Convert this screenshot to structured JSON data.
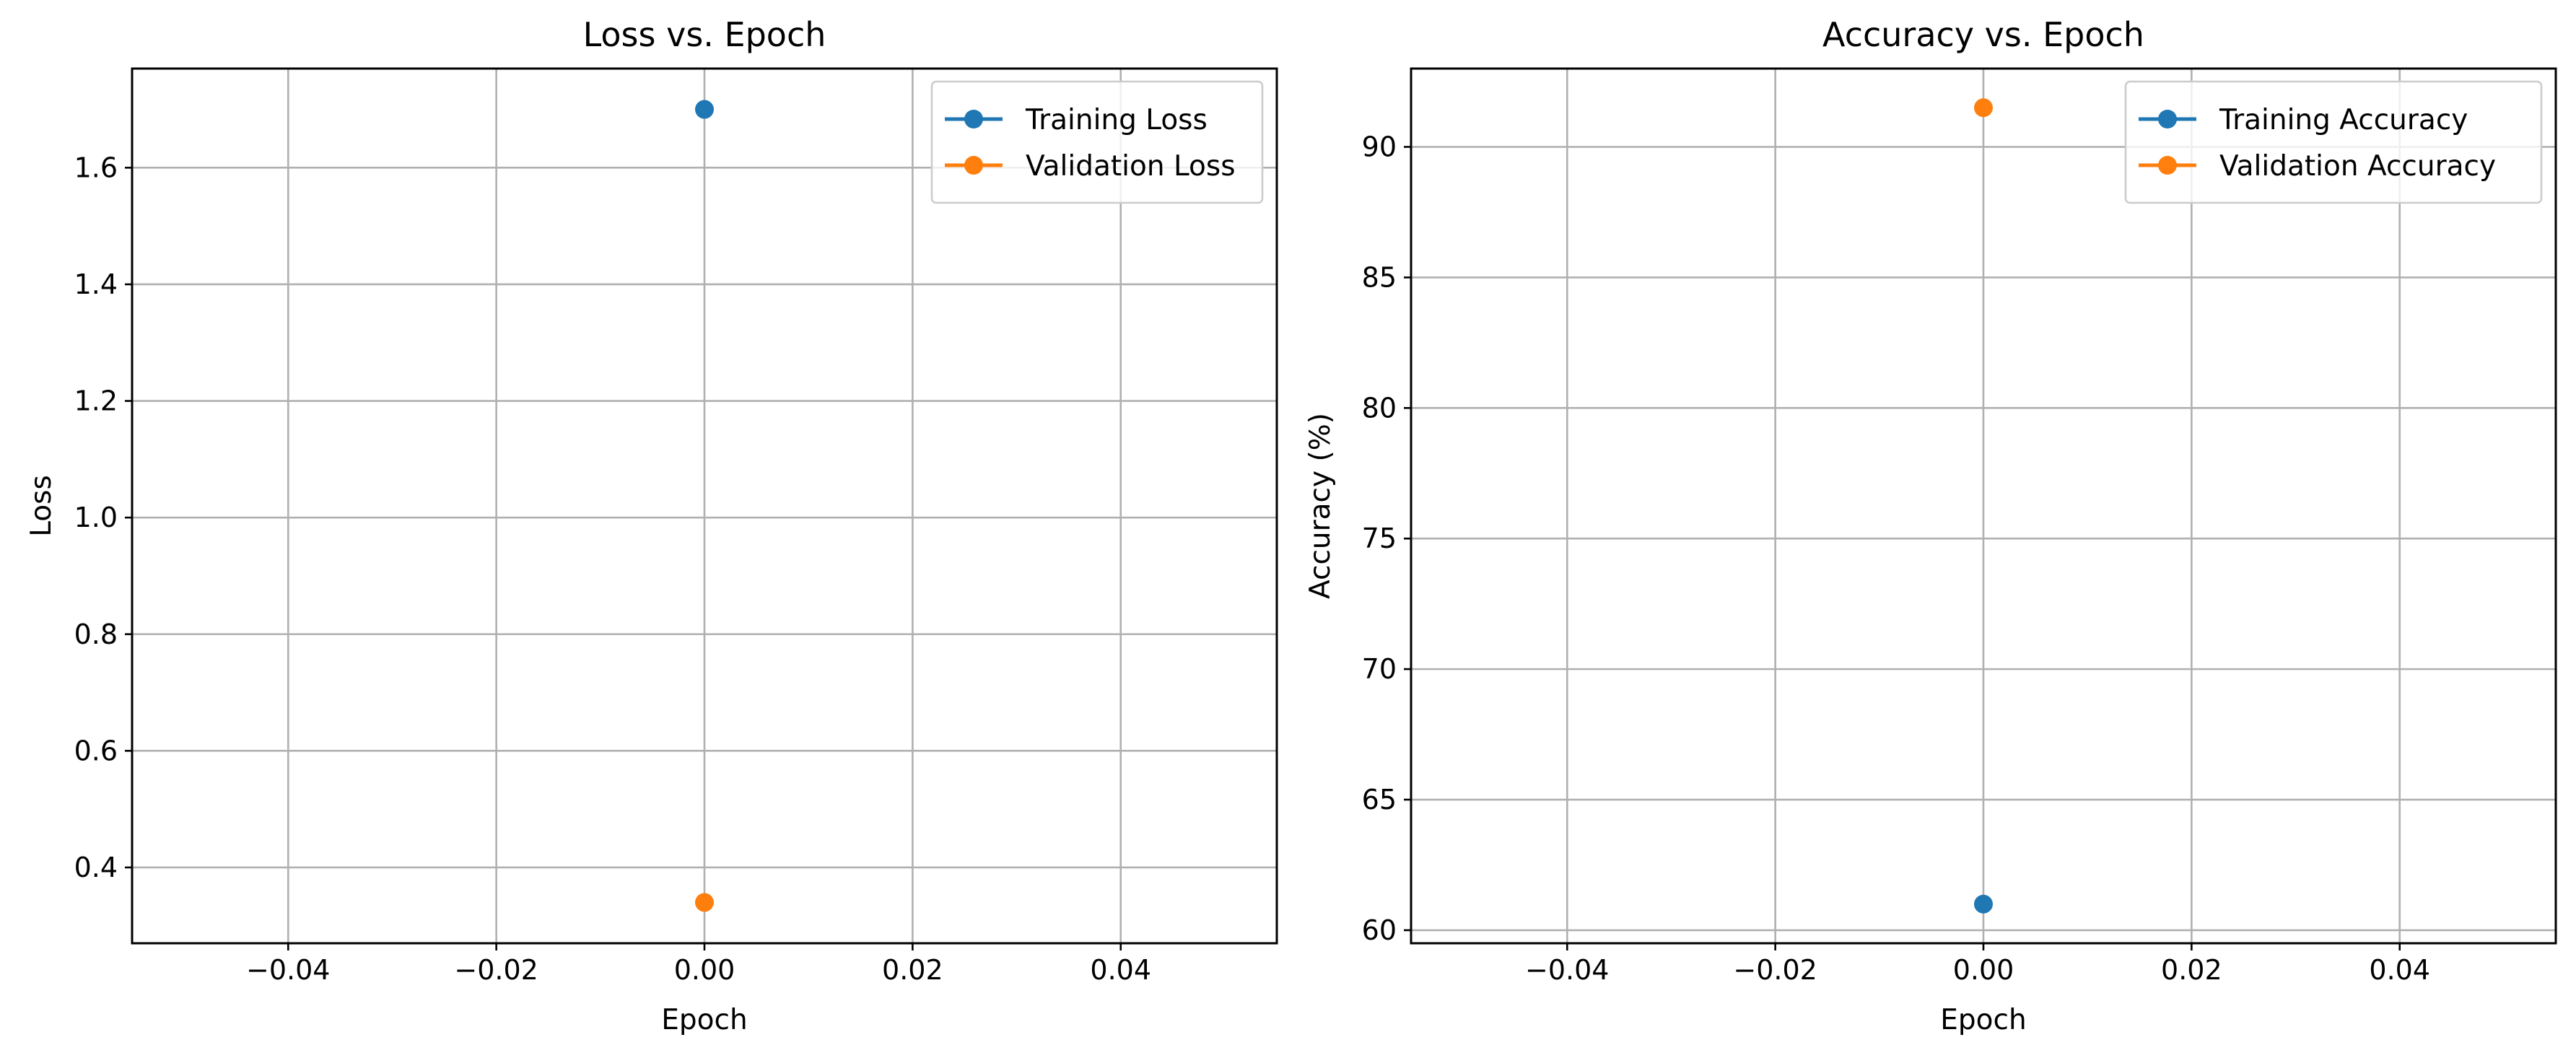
{
  "chart_data": [
    {
      "type": "line",
      "title": "Loss vs. Epoch",
      "xlabel": "Epoch",
      "ylabel": "Loss",
      "xlim": [
        -0.055,
        0.055
      ],
      "ylim": [
        0.27,
        1.77
      ],
      "xticks": [
        -0.04,
        -0.02,
        0.0,
        0.02,
        0.04
      ],
      "xtick_labels": [
        "−0.04",
        "−0.02",
        "0.00",
        "0.02",
        "0.04"
      ],
      "yticks": [
        0.4,
        0.6,
        0.8,
        1.0,
        1.2,
        1.4,
        1.6
      ],
      "ytick_labels": [
        "0.4",
        "0.6",
        "0.8",
        "1.0",
        "1.2",
        "1.4",
        "1.6"
      ],
      "grid": true,
      "legend_position": "top-right",
      "series": [
        {
          "name": "Training Loss",
          "color": "#1f77b4",
          "x": [
            0
          ],
          "y": [
            1.7
          ]
        },
        {
          "name": "Validation Loss",
          "color": "#ff7f0e",
          "x": [
            0
          ],
          "y": [
            0.34
          ]
        }
      ]
    },
    {
      "type": "line",
      "title": "Accuracy vs. Epoch",
      "xlabel": "Epoch",
      "ylabel": "Accuracy (%)",
      "xlim": [
        -0.055,
        0.055
      ],
      "ylim": [
        59.5,
        93.0
      ],
      "xticks": [
        -0.04,
        -0.02,
        0.0,
        0.02,
        0.04
      ],
      "xtick_labels": [
        "−0.04",
        "−0.02",
        "0.00",
        "0.02",
        "0.04"
      ],
      "yticks": [
        60,
        65,
        70,
        75,
        80,
        85,
        90
      ],
      "ytick_labels": [
        "60",
        "65",
        "70",
        "75",
        "80",
        "85",
        "90"
      ],
      "grid": true,
      "legend_position": "top-right",
      "series": [
        {
          "name": "Training Accuracy",
          "color": "#1f77b4",
          "x": [
            0
          ],
          "y": [
            61.0
          ]
        },
        {
          "name": "Validation Accuracy",
          "color": "#ff7f0e",
          "x": [
            0
          ],
          "y": [
            91.5
          ]
        }
      ]
    }
  ]
}
